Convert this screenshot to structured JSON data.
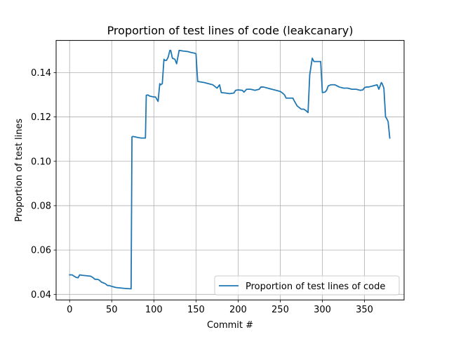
{
  "chart_data": {
    "type": "line",
    "title": "Proportion of test lines of code (leakcanary)",
    "xlabel": "Commit #",
    "ylabel": "Proportion of test lines",
    "xlim": [
      -16,
      397
    ],
    "ylim": [
      0.0375,
      0.1545
    ],
    "xticks": [
      0,
      50,
      100,
      150,
      200,
      250,
      300,
      350
    ],
    "yticks": [
      0.04,
      0.06,
      0.08,
      0.1,
      0.12,
      0.14
    ],
    "ytick_labels": [
      "0.04",
      "0.06",
      "0.08",
      "0.10",
      "0.12",
      "0.14"
    ],
    "grid": true,
    "legend_position": "lower-right",
    "series": [
      {
        "name": "Proportion of test lines of code",
        "color": "#1f77b4",
        "x": [
          0,
          3,
          5,
          8,
          10,
          12,
          15,
          20,
          25,
          28,
          30,
          33,
          35,
          38,
          40,
          42,
          45,
          47,
          50,
          53,
          55,
          60,
          65,
          70,
          73,
          74,
          75,
          78,
          80,
          85,
          90,
          91,
          93,
          95,
          100,
          102,
          105,
          107,
          108,
          110,
          112,
          113,
          115,
          117,
          119,
          120,
          122,
          125,
          127,
          130,
          135,
          140,
          145,
          148,
          150,
          152,
          160,
          165,
          170,
          175,
          178,
          180,
          185,
          190,
          195,
          197,
          200,
          205,
          207,
          210,
          215,
          220,
          225,
          227,
          230,
          235,
          240,
          245,
          250,
          252,
          255,
          257,
          260,
          265,
          267,
          270,
          275,
          278,
          280,
          283,
          285,
          288,
          290,
          295,
          298,
          300,
          303,
          305,
          307,
          310,
          315,
          320,
          325,
          330,
          335,
          340,
          345,
          348,
          350,
          352,
          355,
          360,
          365,
          367,
          370,
          371,
          373,
          375,
          376,
          378,
          380
        ],
        "y": [
          0.0488,
          0.0488,
          0.0483,
          0.0476,
          0.0475,
          0.0488,
          0.0486,
          0.0484,
          0.0482,
          0.0475,
          0.0468,
          0.0468,
          0.0465,
          0.0455,
          0.0452,
          0.0449,
          0.044,
          0.044,
          0.0436,
          0.0433,
          0.0431,
          0.0429,
          0.0427,
          0.0426,
          0.0425,
          0.111,
          0.1112,
          0.111,
          0.1108,
          0.1105,
          0.1105,
          0.1298,
          0.1299,
          0.1294,
          0.129,
          0.129,
          0.127,
          0.135,
          0.1345,
          0.135,
          0.146,
          0.1455,
          0.1455,
          0.147,
          0.15,
          0.15,
          0.1465,
          0.146,
          0.144,
          0.15,
          0.1497,
          0.1495,
          0.149,
          0.1488,
          0.1485,
          0.136,
          0.1355,
          0.135,
          0.1345,
          0.133,
          0.1345,
          0.131,
          0.1308,
          0.1305,
          0.1308,
          0.132,
          0.1322,
          0.132,
          0.1312,
          0.1325,
          0.1325,
          0.132,
          0.1325,
          0.1335,
          0.1335,
          0.133,
          0.1325,
          0.132,
          0.1315,
          0.131,
          0.13,
          0.1285,
          0.1285,
          0.1285,
          0.127,
          0.125,
          0.1235,
          0.1235,
          0.123,
          0.122,
          0.139,
          0.1465,
          0.145,
          0.145,
          0.145,
          0.131,
          0.1312,
          0.132,
          0.134,
          0.1345,
          0.1345,
          0.1335,
          0.133,
          0.133,
          0.1325,
          0.1325,
          0.132,
          0.1322,
          0.1332,
          0.1335,
          0.1335,
          0.134,
          0.1345,
          0.1325,
          0.1355,
          0.135,
          0.133,
          0.12,
          0.1195,
          0.118,
          0.1105
        ]
      }
    ]
  }
}
